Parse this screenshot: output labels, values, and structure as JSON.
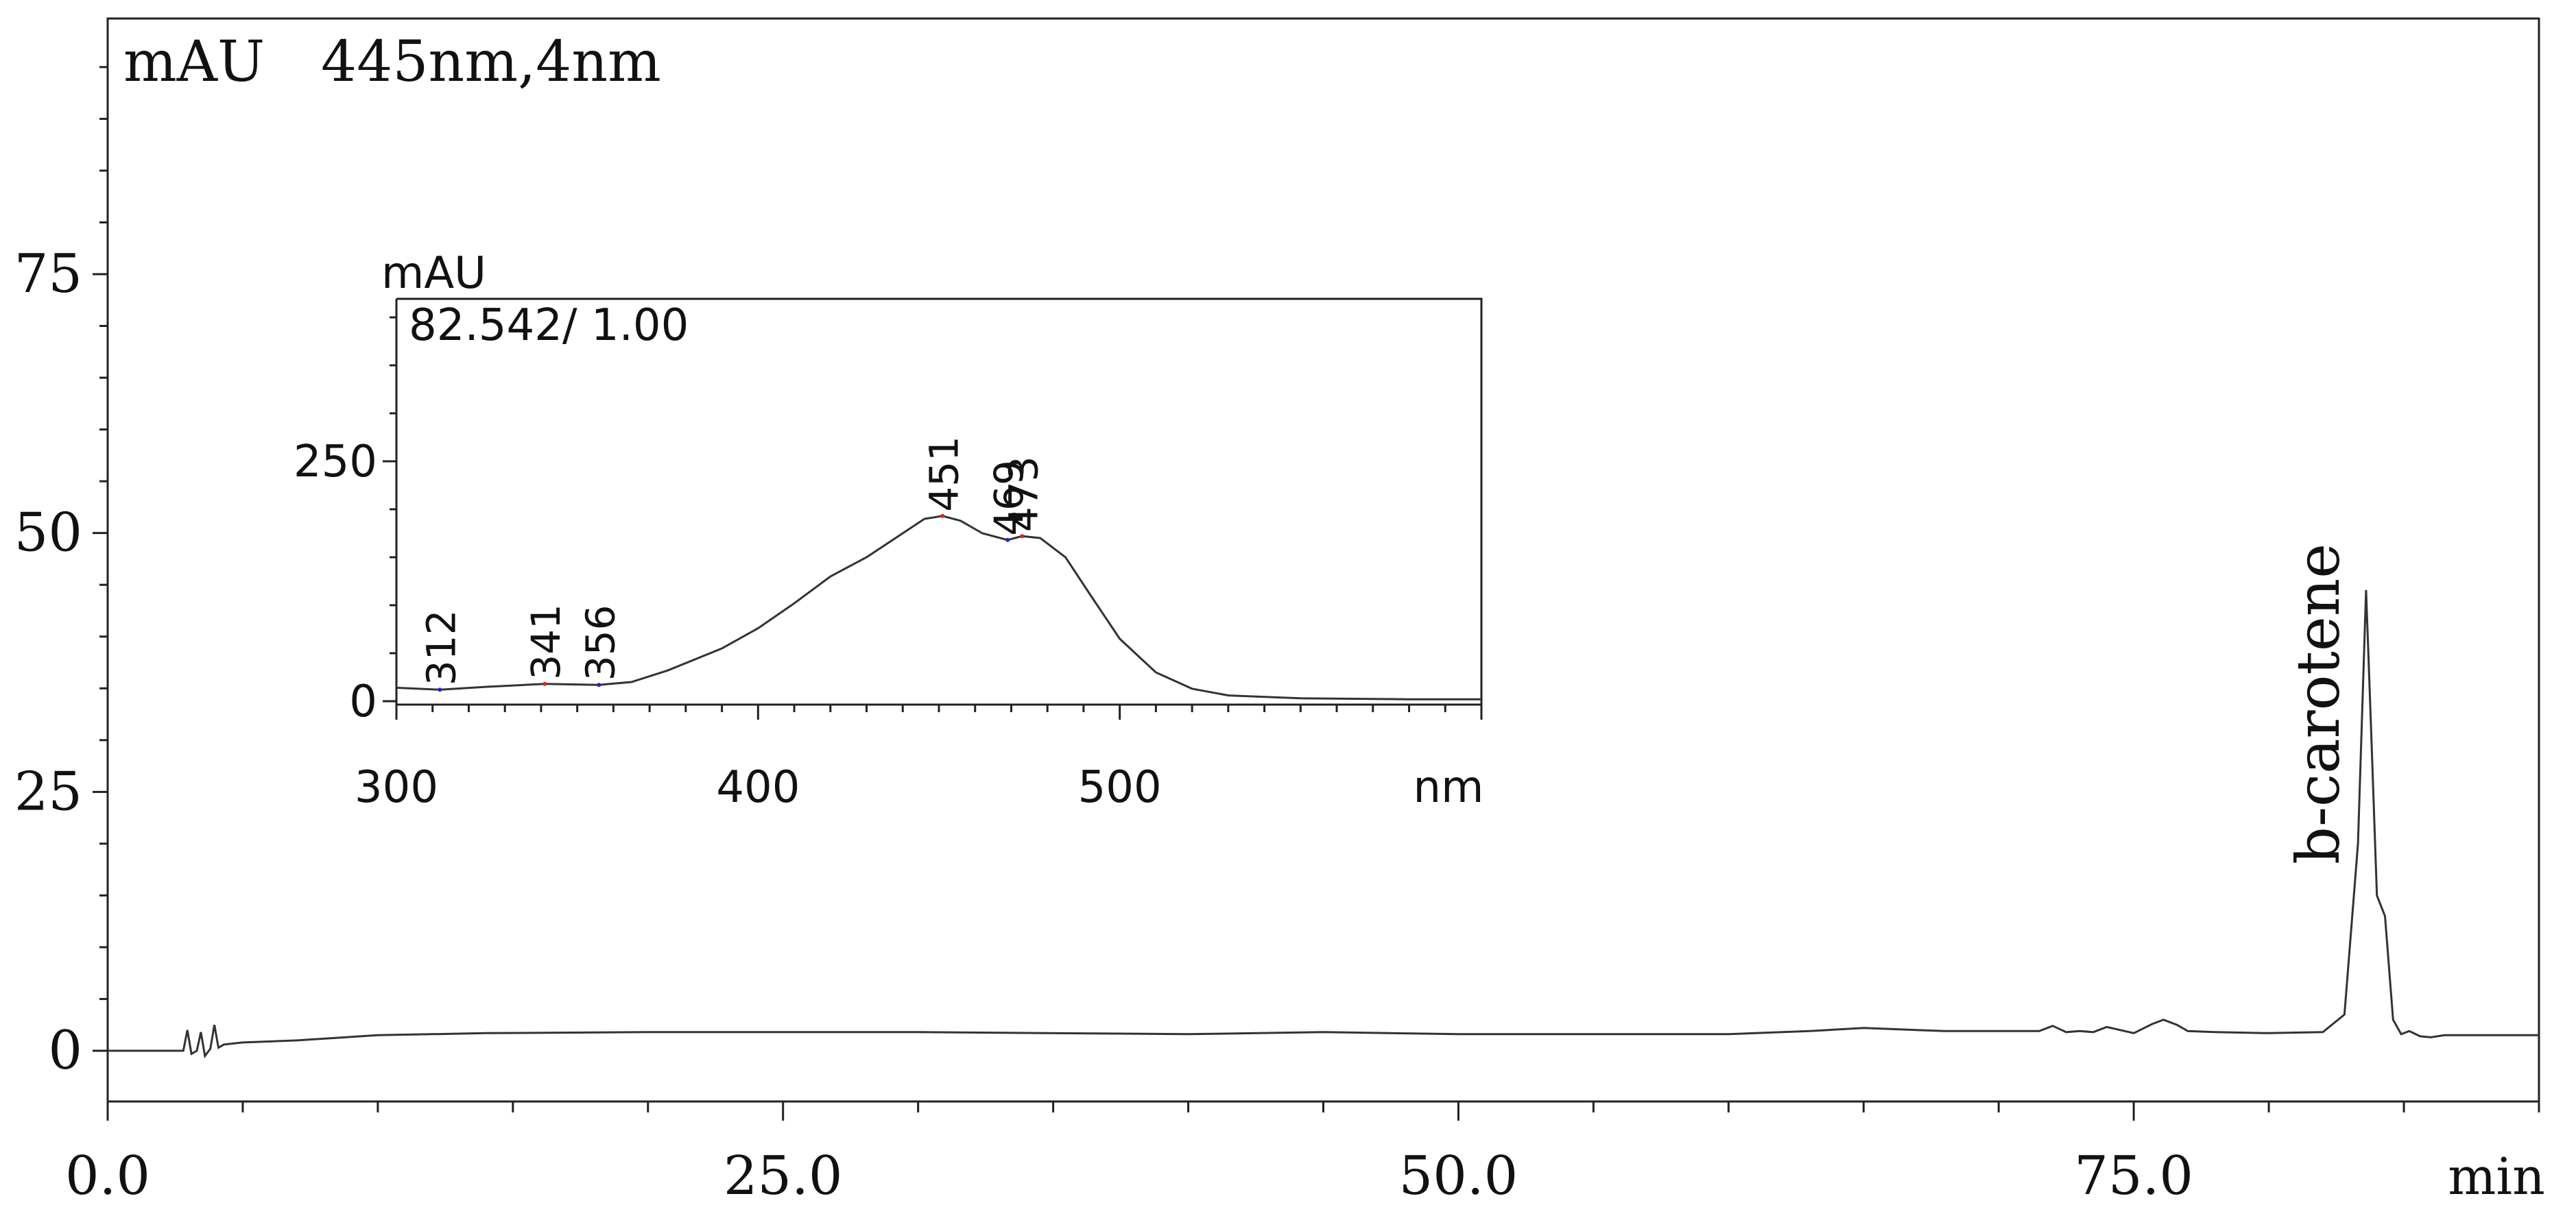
{
  "chart_data": [
    {
      "type": "line",
      "title": "445nm,4nm",
      "ylabel": "mAU",
      "xlabel": "min",
      "xlim": [
        0,
        90
      ],
      "ylim": [
        -5,
        100
      ],
      "x_ticks": [
        0,
        25,
        50,
        75
      ],
      "x_tick_labels": [
        "0.0",
        "25.0",
        "50.0",
        "75.0"
      ],
      "y_ticks": [
        0,
        25,
        50,
        75
      ],
      "y_tick_labels": [
        "0",
        "25",
        "50",
        "75"
      ],
      "grid": false,
      "series": [
        {
          "x": [
            0,
            2.8,
            2.95,
            3.1,
            3.3,
            3.45,
            3.6,
            3.8,
            3.95,
            4.1,
            4.3,
            5,
            7,
            10,
            14,
            20,
            30,
            40,
            45,
            50,
            55,
            60,
            63,
            65,
            68,
            70,
            71.5,
            72,
            72.5,
            73,
            73.5,
            74,
            75,
            75.7,
            76.1,
            76.6,
            77,
            78,
            80,
            82,
            82.8,
            83.3,
            83.6,
            83.8,
            84.0,
            84.3,
            84.6,
            84.9,
            85.2,
            85.6,
            86,
            86.5,
            88,
            90
          ],
          "y": [
            0,
            0,
            2,
            -0.3,
            0,
            1.8,
            -0.5,
            0.2,
            2.5,
            0.3,
            0.6,
            0.8,
            1.0,
            1.5,
            1.7,
            1.8,
            1.8,
            1.6,
            1.8,
            1.6,
            1.6,
            1.6,
            1.9,
            2.2,
            1.9,
            1.9,
            1.9,
            2.4,
            1.8,
            1.9,
            1.8,
            2.3,
            1.7,
            2.6,
            3.0,
            2.5,
            1.9,
            1.8,
            1.7,
            1.8,
            3.5,
            20,
            44.5,
            30,
            15,
            13,
            3,
            1.6,
            1.9,
            1.4,
            1.3,
            1.5,
            1.5,
            1.5
          ]
        }
      ],
      "peak_label": "b-carotene",
      "peak_x": 83.6
    },
    {
      "type": "line",
      "title": "82.542/ 1.00",
      "ylabel": "mAU",
      "xlabel": "nm",
      "xlim": [
        300,
        600
      ],
      "ylim": [
        -15,
        400
      ],
      "x_ticks": [
        300,
        400,
        500
      ],
      "x_tick_labels": [
        "300",
        "400",
        "500"
      ],
      "y_ticks": [
        0,
        250
      ],
      "y_tick_labels": [
        "0",
        "250"
      ],
      "grid": false,
      "series": [
        {
          "x": [
            300,
            312,
            325,
            341,
            356,
            365,
            375,
            390,
            400,
            410,
            420,
            430,
            440,
            446,
            451,
            456,
            462,
            469,
            473,
            478,
            485,
            492,
            500,
            510,
            520,
            530,
            550,
            580,
            600
          ],
          "y": [
            14,
            12,
            15,
            18,
            17,
            20,
            32,
            55,
            76,
            102,
            130,
            150,
            175,
            190,
            193,
            188,
            175,
            168,
            172,
            170,
            150,
            110,
            65,
            30,
            13,
            6,
            3,
            2,
            2
          ]
        }
      ],
      "peak_labels": [
        "312",
        "341",
        "356",
        "451",
        "469",
        "473"
      ],
      "peak_xs": [
        312,
        341,
        356,
        451,
        469,
        473
      ]
    }
  ]
}
